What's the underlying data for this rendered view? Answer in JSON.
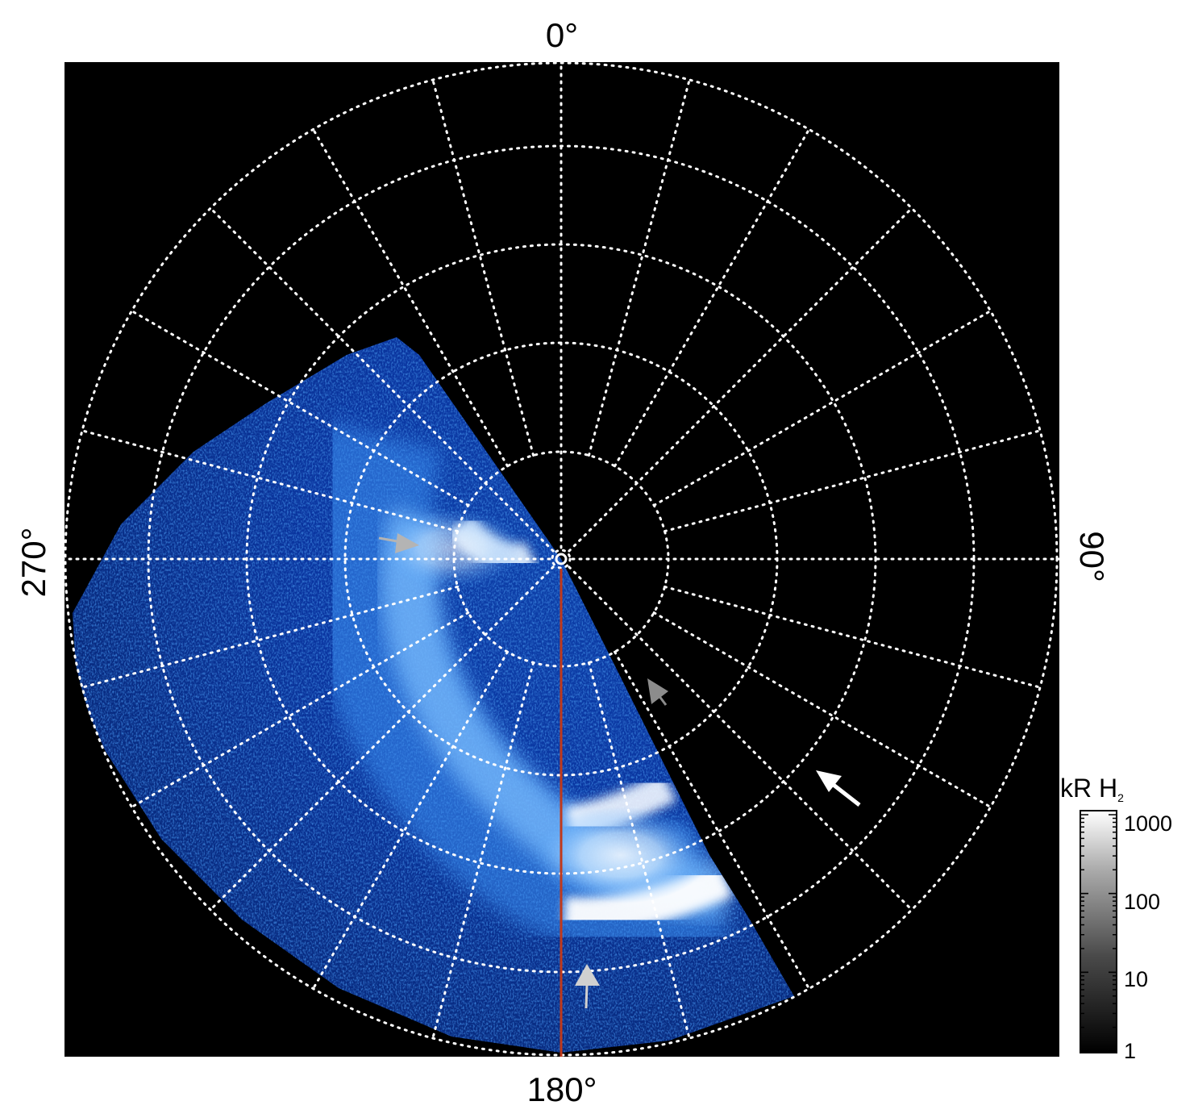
{
  "axes": {
    "label_top": "0°",
    "label_right": "90°",
    "label_bottom": "180°",
    "label_left": "270°"
  },
  "colorbar": {
    "title_main": "kR H",
    "title_subscript": "2",
    "ticks": [
      "1000",
      "100",
      "10",
      "1"
    ],
    "scale": "log",
    "range": [
      1,
      1000
    ]
  },
  "image": {
    "background_color": "#000000",
    "grid_color": "#ffffff",
    "meridian_line_color": "#c0391b",
    "emission_colors": [
      "#0a2a8a",
      "#1e64d8",
      "#4aa3ff",
      "#cfe8ff",
      "#ffffff"
    ]
  },
  "markers": [
    {
      "name": "light-gray-arrow",
      "color": "#b4b4b4"
    },
    {
      "name": "dark-gray-arrow",
      "color": "#8c8c8c"
    },
    {
      "name": "white-arrow",
      "color": "#ffffff"
    },
    {
      "name": "bottom-gray-arrow",
      "color": "#d0d0d0"
    }
  ]
}
